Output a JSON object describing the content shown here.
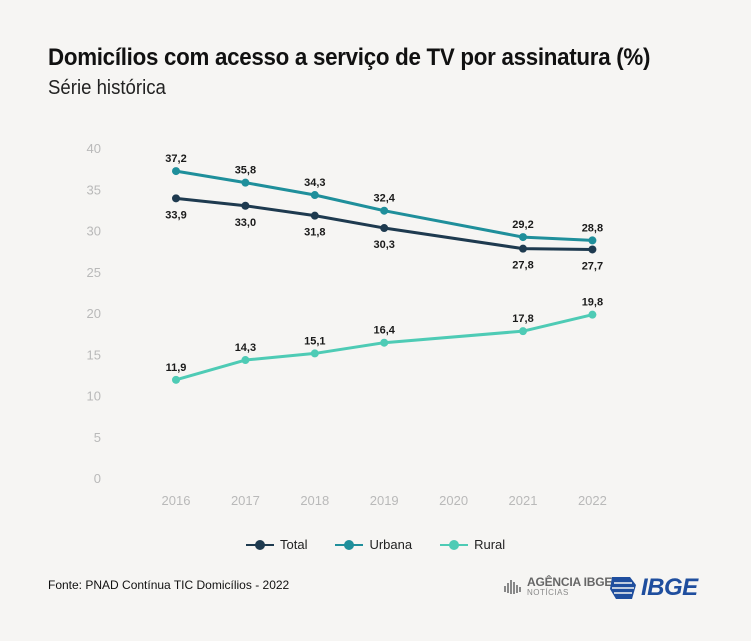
{
  "title": "Domicílios com acesso a serviço de TV por assinatura (%)",
  "subtitle": "Série histórica",
  "source": "Fonte: PNAD Contínua TIC Domicílios - 2022",
  "logos": {
    "agencia_main": "AGÊNCIA IBGE",
    "agencia_sub": "NOTÍCIAS",
    "ibge": "IBGE"
  },
  "chart_data": {
    "type": "line",
    "title": "Domicílios com acesso a serviço de TV por assinatura (%)",
    "subtitle": "Série histórica",
    "x": [
      "2016",
      "2017",
      "2018",
      "2019",
      "2020",
      "2021",
      "2022"
    ],
    "ylim": [
      0,
      40
    ],
    "yticks": [
      0,
      5,
      10,
      15,
      20,
      25,
      30,
      35,
      40
    ],
    "grid": false,
    "legend": "bottom",
    "series": [
      {
        "name": "Total",
        "color": "#1e3a4f",
        "values": [
          33.9,
          33.0,
          31.8,
          30.3,
          null,
          27.8,
          27.7
        ],
        "labels": [
          "33,9",
          "33,0",
          "31,8",
          "30,3",
          null,
          "27,8",
          "27,7"
        ],
        "label_pos": "below"
      },
      {
        "name": "Urbana",
        "color": "#1f8f9b",
        "values": [
          37.2,
          35.8,
          34.3,
          32.4,
          null,
          29.2,
          28.8
        ],
        "labels": [
          "37,2",
          "35,8",
          "34,3",
          "32,4",
          null,
          "29,2",
          "28,8"
        ],
        "label_pos": "above"
      },
      {
        "name": "Rural",
        "color": "#4ecbb5",
        "values": [
          11.9,
          14.3,
          15.1,
          16.4,
          null,
          17.8,
          19.8
        ],
        "labels": [
          "11,9",
          "14,3",
          "15,1",
          "16,4",
          null,
          "17,8",
          "19,8"
        ],
        "label_pos": "above"
      }
    ]
  }
}
